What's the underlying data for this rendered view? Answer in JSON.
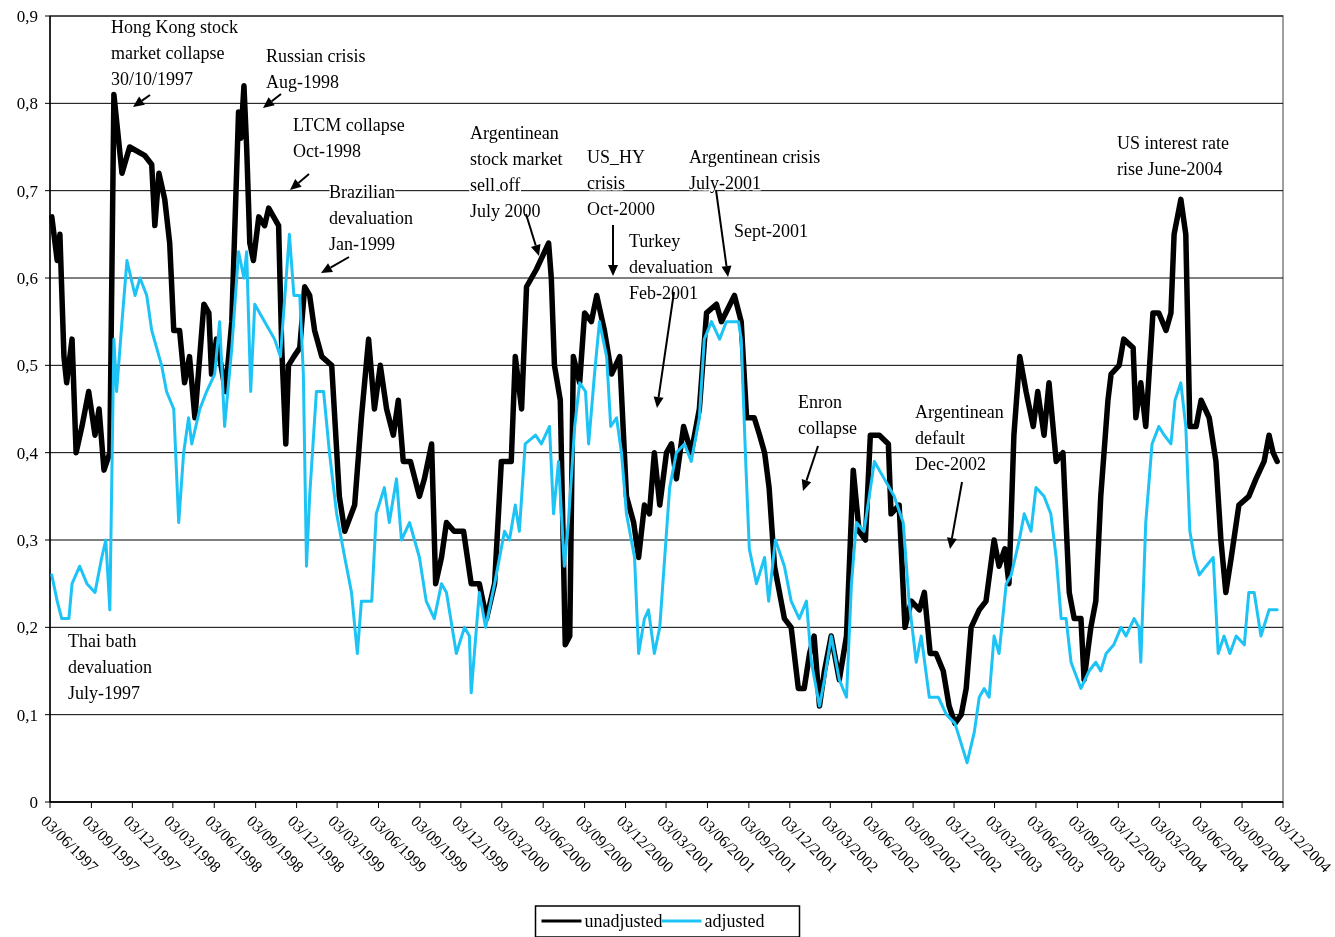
{
  "chart_data": {
    "type": "line",
    "xlim": [
      "1997-06-03",
      "2004-12-03"
    ],
    "ylim": [
      0,
      0.9
    ],
    "xticks": [
      {
        "value": "1997-06-03",
        "label": "03/06/1997"
      },
      {
        "value": "1997-09-03",
        "label": "03/09/1997"
      },
      {
        "value": "1997-12-03",
        "label": "03/12/1997"
      },
      {
        "value": "1998-03-03",
        "label": "03/03/1998"
      },
      {
        "value": "1998-06-03",
        "label": "03/06/1998"
      },
      {
        "value": "1998-09-03",
        "label": "03/09/1998"
      },
      {
        "value": "1998-12-03",
        "label": "03/12/1998"
      },
      {
        "value": "1999-03-03",
        "label": "03/03/1999"
      },
      {
        "value": "1999-06-03",
        "label": "03/06/1999"
      },
      {
        "value": "1999-09-03",
        "label": "03/09/1999"
      },
      {
        "value": "1999-12-03",
        "label": "03/12/1999"
      },
      {
        "value": "2000-03-03",
        "label": "03/03/2000"
      },
      {
        "value": "2000-06-03",
        "label": "03/06/2000"
      },
      {
        "value": "2000-09-03",
        "label": "03/09/2000"
      },
      {
        "value": "2000-12-03",
        "label": "03/12/2000"
      },
      {
        "value": "2001-03-03",
        "label": "03/03/2001"
      },
      {
        "value": "2001-06-03",
        "label": "03/06/2001"
      },
      {
        "value": "2001-09-03",
        "label": "03/09/2001"
      },
      {
        "value": "2001-12-03",
        "label": "03/12/2001"
      },
      {
        "value": "2002-03-03",
        "label": "03/03/2002"
      },
      {
        "value": "2002-06-03",
        "label": "03/06/2002"
      },
      {
        "value": "2002-09-03",
        "label": "03/09/2002"
      },
      {
        "value": "2002-12-03",
        "label": "03/12/2002"
      },
      {
        "value": "2003-03-03",
        "label": "03/03/2003"
      },
      {
        "value": "2003-06-03",
        "label": "03/06/2003"
      },
      {
        "value": "2003-09-03",
        "label": "03/09/2003"
      },
      {
        "value": "2003-12-03",
        "label": "03/12/2003"
      },
      {
        "value": "2004-03-03",
        "label": "03/03/2004"
      },
      {
        "value": "2004-06-03",
        "label": "03/06/2004"
      },
      {
        "value": "2004-09-03",
        "label": "03/09/2004"
      },
      {
        "value": "2004-12-03",
        "label": "03/12/2004"
      }
    ],
    "yticks": [
      0,
      {
        "value": 0.1,
        "label": "0,1"
      },
      {
        "value": 0.2,
        "label": "0,2"
      },
      {
        "value": 0.3,
        "label": "0,3"
      },
      {
        "value": 0.4,
        "label": "0,4"
      },
      {
        "value": 0.5,
        "label": "0,5"
      },
      {
        "value": 0.6,
        "label": "0,6"
      },
      {
        "value": 0.7,
        "label": "0,7"
      },
      {
        "value": 0.8,
        "label": "0,8"
      },
      {
        "value": 0.9,
        "label": "0,9"
      }
    ],
    "grid": "y",
    "legend": "bottom",
    "series": [
      {
        "name": "unadjusted",
        "color": "#000000",
        "x": [
          "1997-06-07",
          "1997-06-19",
          "1997-06-25",
          "1997-07-04",
          "1997-07-10",
          "1997-07-22",
          "1997-07-31",
          "1997-08-13",
          "1997-08-28",
          "1997-09-11",
          "1997-09-20",
          "1997-10-01",
          "1997-10-14",
          "1997-10-23",
          "1997-11-10",
          "1997-11-27",
          "1997-12-31",
          "1998-01-15",
          "1998-01-22",
          "1998-01-31",
          "1998-02-13",
          "1998-02-24",
          "1998-03-05",
          "1998-03-18",
          "1998-03-29",
          "1998-04-09",
          "1998-04-21",
          "1998-05-11",
          "1998-05-22",
          "1998-05-28",
          "1998-06-08",
          "1998-06-28",
          "1998-07-12",
          "1998-07-27",
          "1998-08-01",
          "1998-08-08",
          "1998-08-14",
          "1998-08-21",
          "1998-08-29",
          "1998-09-10",
          "1998-09-23",
          "1998-10-02",
          "1998-10-24",
          "1998-10-31",
          "1998-11-09",
          "1998-11-15",
          "1998-11-27",
          "1998-12-10",
          "1998-12-21",
          "1999-01-01",
          "1999-01-12",
          "1999-01-28",
          "1999-02-19",
          "1999-03-08",
          "1999-03-20",
          "1999-04-11",
          "1999-04-26",
          "1999-05-12",
          "1999-05-25",
          "1999-06-07",
          "1999-06-21",
          "1999-07-06",
          "1999-07-17",
          "1999-07-28",
          "1999-08-13",
          "1999-09-02",
          "1999-09-13",
          "1999-09-29",
          "1999-10-08",
          "1999-10-21",
          "1999-11-01",
          "1999-11-18",
          "1999-12-09",
          "1999-12-26",
          "2000-01-13",
          "2000-01-29",
          "2000-02-16",
          "2000-03-02",
          "2000-03-24",
          "2000-04-02",
          "2000-04-16",
          "2000-04-27",
          "2000-05-19",
          "2000-06-15",
          "2000-06-21",
          "2000-06-28",
          "2000-07-11",
          "2000-07-22",
          "2000-08-01",
          "2000-08-09",
          "2000-08-23",
          "2000-09-03",
          "2000-09-18",
          "2000-09-30",
          "2000-10-17",
          "2000-11-02",
          "2000-11-20",
          "2000-12-05",
          "2000-12-21",
          "2001-01-01",
          "2001-01-14",
          "2001-01-25",
          "2001-02-05",
          "2001-02-17",
          "2001-03-04",
          "2001-03-15",
          "2001-03-26",
          "2001-04-11",
          "2001-04-28",
          "2001-05-16",
          "2001-06-01",
          "2001-06-23",
          "2001-07-04",
          "2001-08-02",
          "2001-08-17",
          "2001-08-29",
          "2001-09-15",
          "2001-09-27",
          "2001-10-08",
          "2001-10-18",
          "2001-10-30",
          "2001-11-21",
          "2001-12-06",
          "2001-12-22",
          "2002-01-04",
          "2002-01-16",
          "2002-01-26",
          "2002-02-07",
          "2002-02-18",
          "2002-03-05",
          "2002-03-23",
          "2002-04-08",
          "2002-04-23",
          "2002-05-06",
          "2002-05-20",
          "2002-05-31",
          "2002-06-20",
          "2002-07-10",
          "2002-07-16",
          "2002-08-03",
          "2002-08-16",
          "2002-08-30",
          "2002-09-17",
          "2002-09-28",
          "2002-10-11",
          "2002-10-24",
          "2002-11-09",
          "2002-11-22",
          "2002-12-05",
          "2002-12-19",
          "2002-12-30",
          "2003-01-10",
          "2003-01-28",
          "2003-02-12",
          "2003-03-02",
          "2003-03-13",
          "2003-03-26",
          "2003-04-04",
          "2003-04-15",
          "2003-04-28",
          "2003-05-12",
          "2003-05-28",
          "2003-06-07",
          "2003-06-21",
          "2003-07-02",
          "2003-07-18",
          "2003-08-02",
          "2003-08-16",
          "2003-08-27",
          "2003-09-11",
          "2003-09-18",
          "2003-10-03",
          "2003-10-14",
          "2003-10-25",
          "2003-11-10",
          "2003-11-17",
          "2003-12-05",
          "2003-12-15",
          "2004-01-05",
          "2004-01-11",
          "2004-01-22",
          "2004-02-02",
          "2004-02-18",
          "2004-03-02",
          "2004-03-18",
          "2004-03-29",
          "2004-04-05",
          "2004-04-20",
          "2004-05-01",
          "2004-05-10",
          "2004-05-24",
          "2004-06-04",
          "2004-06-22",
          "2004-07-07",
          "2004-07-18",
          "2004-07-29",
          "2004-08-10",
          "2004-08-27",
          "2004-09-18",
          "2004-10-04",
          "2004-10-22",
          "2004-11-02",
          "2004-11-11",
          "2004-11-20"
        ],
        "values": [
          0.67,
          0.62,
          0.65,
          0.51,
          0.48,
          0.53,
          0.4,
          0.43,
          0.47,
          0.42,
          0.45,
          0.38,
          0.4,
          0.81,
          0.72,
          0.75,
          0.74,
          0.73,
          0.66,
          0.72,
          0.69,
          0.64,
          0.54,
          0.54,
          0.48,
          0.51,
          0.44,
          0.57,
          0.56,
          0.49,
          0.53,
          0.47,
          0.55,
          0.79,
          0.76,
          0.82,
          0.75,
          0.64,
          0.62,
          0.67,
          0.66,
          0.68,
          0.66,
          0.52,
          0.41,
          0.5,
          0.51,
          0.52,
          0.59,
          0.58,
          0.54,
          0.51,
          0.5,
          0.35,
          0.31,
          0.34,
          0.44,
          0.53,
          0.45,
          0.5,
          0.45,
          0.42,
          0.46,
          0.39,
          0.39,
          0.35,
          0.37,
          0.41,
          0.25,
          0.28,
          0.32,
          0.31,
          0.31,
          0.25,
          0.25,
          0.21,
          0.25,
          0.39,
          0.39,
          0.51,
          0.45,
          0.59,
          0.61,
          0.64,
          0.6,
          0.5,
          0.46,
          0.18,
          0.19,
          0.51,
          0.48,
          0.56,
          0.55,
          0.58,
          0.54,
          0.49,
          0.51,
          0.35,
          0.32,
          0.28,
          0.34,
          0.33,
          0.4,
          0.34,
          0.4,
          0.41,
          0.37,
          0.43,
          0.4,
          0.45,
          0.56,
          0.57,
          0.55,
          0.58,
          0.55,
          0.44,
          0.44,
          0.42,
          0.4,
          0.36,
          0.27,
          0.21,
          0.2,
          0.13,
          0.13,
          0.17,
          0.19,
          0.11,
          0.15,
          0.19,
          0.14,
          0.19,
          0.38,
          0.31,
          0.3,
          0.42,
          0.42,
          0.41,
          0.33,
          0.34,
          0.2,
          0.23,
          0.22,
          0.24,
          0.17,
          0.17,
          0.15,
          0.11,
          0.09,
          0.1,
          0.13,
          0.2,
          0.22,
          0.23,
          0.3,
          0.27,
          0.29,
          0.25,
          0.42,
          0.51,
          0.47,
          0.43,
          0.47,
          0.42,
          0.48,
          0.39,
          0.4,
          0.24,
          0.21,
          0.21,
          0.14,
          0.2,
          0.23,
          0.35,
          0.46,
          0.49,
          0.5,
          0.53,
          0.52,
          0.44,
          0.48,
          0.43,
          0.56,
          0.56,
          0.54,
          0.56,
          0.65,
          0.69,
          0.65,
          0.43,
          0.43,
          0.46,
          0.44,
          0.39,
          0.3,
          0.24,
          0.28,
          0.34,
          0.35,
          0.37,
          0.39,
          0.42,
          0.4,
          0.39
        ]
      },
      {
        "name": "adjusted",
        "color": "#1ec3f5",
        "x": [
          "1997-06-07",
          "1997-06-19",
          "1997-06-29",
          "1997-07-15",
          "1997-07-22",
          "1997-08-08",
          "1997-08-24",
          "1997-09-11",
          "1997-09-26",
          "1997-10-05",
          "1997-10-14",
          "1997-10-23",
          "1997-10-29",
          "1997-11-10",
          "1997-11-21",
          "1997-12-09",
          "1997-12-20",
          "1998-01-04",
          "1998-01-15",
          "1998-02-06",
          "1998-02-17",
          "1998-03-05",
          "1998-03-16",
          "1998-03-27",
          "1998-04-07",
          "1998-04-14",
          "1998-05-02",
          "1998-05-17",
          "1998-06-04",
          "1998-06-15",
          "1998-06-26",
          "1998-07-12",
          "1998-07-27",
          "1998-08-08",
          "1998-08-14",
          "1998-08-23",
          "1998-09-01",
          "1998-09-23",
          "1998-10-15",
          "1998-10-28",
          "1998-11-17",
          "1998-11-27",
          "1998-12-10",
          "1998-12-18",
          "1998-12-25",
          "1999-01-01",
          "1999-01-16",
          "1999-02-01",
          "1999-02-14",
          "1999-03-02",
          "1999-03-20",
          "1999-04-04",
          "1999-04-17",
          "1999-04-26",
          "1999-05-19",
          "1999-05-29",
          "1999-06-16",
          "1999-06-27",
          "1999-07-13",
          "1999-07-24",
          "1999-08-11",
          "1999-09-02",
          "1999-09-17",
          "1999-10-05",
          "1999-10-21",
          "1999-11-01",
          "1999-11-23",
          "1999-12-11",
          "1999-12-22",
          "1999-12-26",
          "2000-01-13",
          "2000-01-27",
          "2000-02-16",
          "2000-03-09",
          "2000-03-20",
          "2000-04-02",
          "2000-04-11",
          "2000-04-24",
          "2000-05-17",
          "2000-05-30",
          "2000-06-17",
          "2000-06-26",
          "2000-07-07",
          "2000-07-20",
          "2000-07-29",
          "2000-08-12",
          "2000-08-23",
          "2000-09-05",
          "2000-09-12",
          "2000-09-25",
          "2000-10-06",
          "2000-10-22",
          "2000-10-31",
          "2000-11-13",
          "2000-11-24",
          "2000-12-05",
          "2000-12-23",
          "2001-01-01",
          "2001-01-14",
          "2001-01-23",
          "2001-02-05",
          "2001-02-17",
          "2001-03-11",
          "2001-03-26",
          "2001-04-13",
          "2001-04-28",
          "2001-05-16",
          "2001-05-27",
          "2001-06-12",
          "2001-06-30",
          "2001-07-15",
          "2001-08-11",
          "2001-08-17",
          "2001-08-27",
          "2001-09-04",
          "2001-09-20",
          "2001-10-08",
          "2001-10-17",
          "2001-11-01",
          "2001-11-21",
          "2001-12-06",
          "2001-12-24",
          "2002-01-09",
          "2002-01-20",
          "2002-02-07",
          "2002-02-18",
          "2002-03-05",
          "2002-03-23",
          "2002-04-08",
          "2002-04-19",
          "2002-04-30",
          "2002-05-17",
          "2002-06-09",
          "2002-07-01",
          "2002-07-23",
          "2002-08-12",
          "2002-08-25",
          "2002-09-10",
          "2002-09-21",
          "2002-10-09",
          "2002-10-29",
          "2002-11-16",
          "2002-12-05",
          "2002-12-23",
          "2003-01-01",
          "2003-01-17",
          "2003-01-28",
          "2003-02-08",
          "2003-02-19",
          "2003-03-02",
          "2003-03-13",
          "2003-03-29",
          "2003-04-09",
          "2003-04-27",
          "2003-05-08",
          "2003-05-23",
          "2003-06-03",
          "2003-06-21",
          "2003-07-06",
          "2003-07-18",
          "2003-07-29",
          "2003-08-09",
          "2003-08-20",
          "2003-09-11",
          "2003-09-29",
          "2003-10-14",
          "2003-10-25",
          "2003-11-06",
          "2003-11-23",
          "2003-12-09",
          "2003-12-20",
          "2004-01-07",
          "2004-01-18",
          "2004-01-22",
          "2004-02-02",
          "2004-02-16",
          "2004-03-02",
          "2004-03-14",
          "2004-03-29",
          "2004-04-07",
          "2004-04-20",
          "2004-05-01",
          "2004-05-10",
          "2004-05-20",
          "2004-05-31",
          "2004-06-15",
          "2004-07-01",
          "2004-07-12",
          "2004-07-25",
          "2004-08-07",
          "2004-08-21",
          "2004-09-08",
          "2004-09-18",
          "2004-09-30",
          "2004-10-15",
          "2004-11-02",
          "2004-11-20"
        ],
        "values": [
          0.26,
          0.23,
          0.21,
          0.21,
          0.25,
          0.27,
          0.25,
          0.24,
          0.28,
          0.3,
          0.22,
          0.53,
          0.47,
          0.55,
          0.62,
          0.58,
          0.6,
          0.58,
          0.54,
          0.5,
          0.47,
          0.45,
          0.32,
          0.4,
          0.44,
          0.41,
          0.45,
          0.47,
          0.49,
          0.55,
          0.43,
          0.52,
          0.63,
          0.6,
          0.63,
          0.47,
          0.57,
          0.55,
          0.53,
          0.51,
          0.65,
          0.58,
          0.58,
          0.49,
          0.27,
          0.35,
          0.47,
          0.47,
          0.4,
          0.33,
          0.28,
          0.24,
          0.17,
          0.23,
          0.23,
          0.33,
          0.36,
          0.32,
          0.37,
          0.3,
          0.32,
          0.28,
          0.23,
          0.21,
          0.25,
          0.24,
          0.17,
          0.2,
          0.19,
          0.125,
          0.24,
          0.2,
          0.25,
          0.31,
          0.3,
          0.34,
          0.31,
          0.41,
          0.42,
          0.41,
          0.43,
          0.33,
          0.39,
          0.27,
          0.32,
          0.43,
          0.48,
          0.47,
          0.41,
          0.49,
          0.55,
          0.51,
          0.43,
          0.44,
          0.4,
          0.33,
          0.28,
          0.17,
          0.21,
          0.22,
          0.17,
          0.2,
          0.36,
          0.4,
          0.41,
          0.39,
          0.44,
          0.53,
          0.55,
          0.53,
          0.55,
          0.55,
          0.53,
          0.39,
          0.29,
          0.25,
          0.28,
          0.23,
          0.3,
          0.27,
          0.23,
          0.21,
          0.23,
          0.16,
          0.11,
          0.14,
          0.19,
          0.14,
          0.12,
          0.25,
          0.32,
          0.31,
          0.39,
          0.37,
          0.35,
          0.32,
          0.23,
          0.16,
          0.19,
          0.12,
          0.12,
          0.1,
          0.09,
          0.06,
          0.045,
          0.08,
          0.12,
          0.13,
          0.12,
          0.19,
          0.17,
          0.25,
          0.26,
          0.3,
          0.33,
          0.31,
          0.36,
          0.35,
          0.33,
          0.28,
          0.21,
          0.21,
          0.16,
          0.13,
          0.15,
          0.16,
          0.15,
          0.17,
          0.18,
          0.2,
          0.19,
          0.21,
          0.2,
          0.16,
          0.32,
          0.41,
          0.43,
          0.42,
          0.41,
          0.46,
          0.48,
          0.43,
          0.31,
          0.28,
          0.26,
          0.27,
          0.28,
          0.17,
          0.19,
          0.17,
          0.19,
          0.18,
          0.24,
          0.24,
          0.19,
          0.22,
          0.22
        ]
      }
    ],
    "annotations": [
      "Hong Kong stock\nmarket collapse\n30/10/1997",
      "Russian crisis\nAug-1998",
      "LTCM collapse\nOct-1998",
      "Brazilian\ndevaluation\nJan-1999",
      "Argentinean\nstock market\nsell off\nJuly 2000",
      "US_HY\ncrisis\nOct-2000",
      "Turkey\ndevaluation\nFeb-2001",
      "Argentinean crisis\nJuly-2001",
      "Sept-2001",
      "Enron\ncollapse",
      "Argentinean\ndefault\nDec-2002",
      "US interest rate\nrise June-2004",
      "Thai bath\ndevaluation\nJuly-1997"
    ]
  }
}
